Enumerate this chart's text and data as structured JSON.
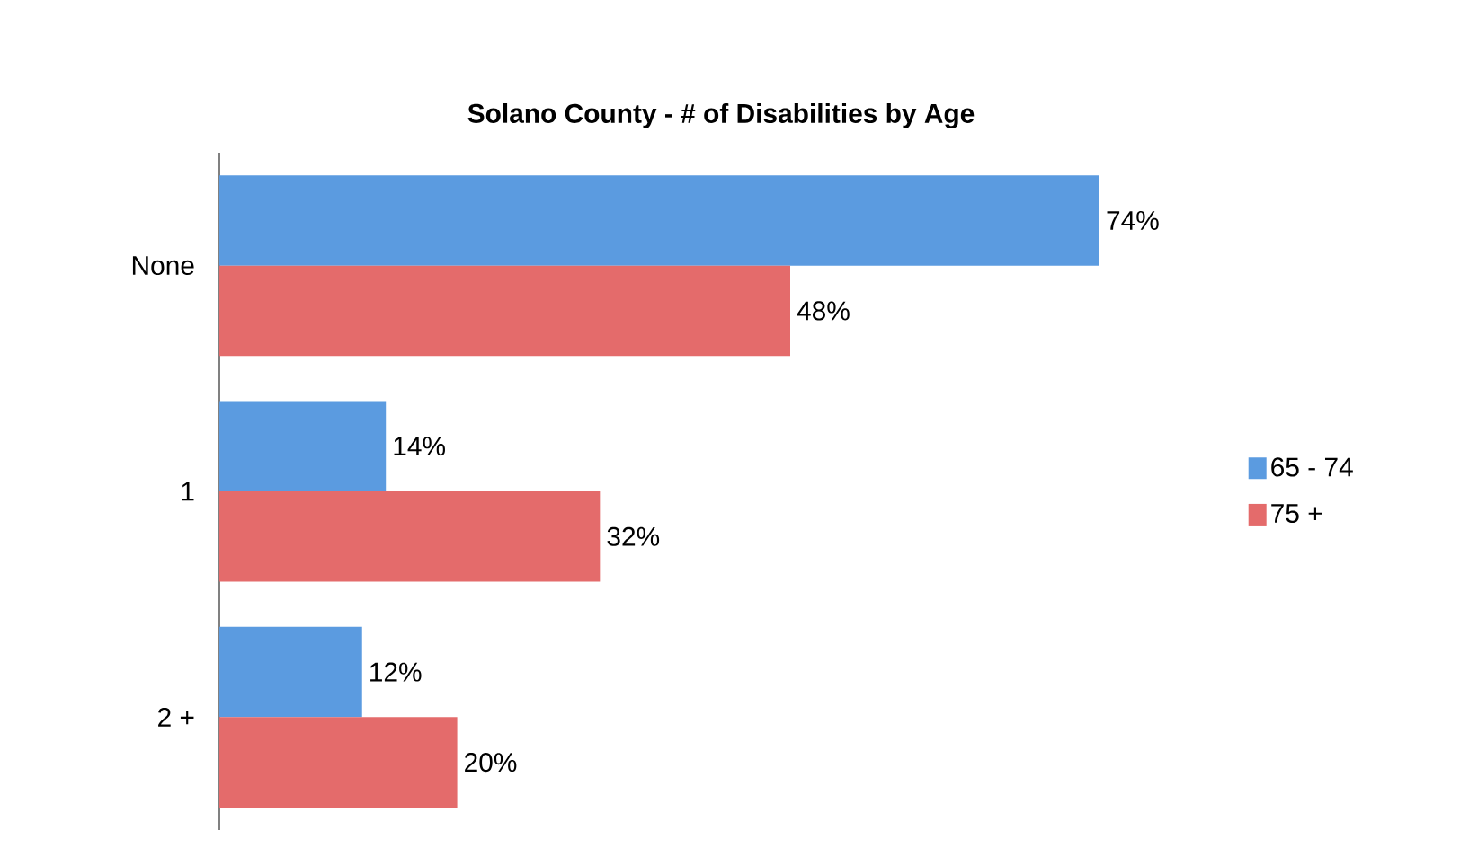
{
  "chart_data": {
    "type": "bar",
    "orientation": "horizontal",
    "title": "Solano County - # of Disabilities by Age",
    "categories": [
      "None",
      "1",
      "2 +"
    ],
    "series": [
      {
        "name": "65 - 74",
        "color": "#5b9be0",
        "values": [
          74,
          14,
          12
        ],
        "value_labels": [
          "74%",
          "14%",
          "12%"
        ]
      },
      {
        "name": "75 +",
        "color": "#e46b6b",
        "values": [
          48,
          32,
          20
        ],
        "value_labels": [
          "48%",
          "32%",
          "20%"
        ]
      }
    ],
    "legend": "right"
  }
}
